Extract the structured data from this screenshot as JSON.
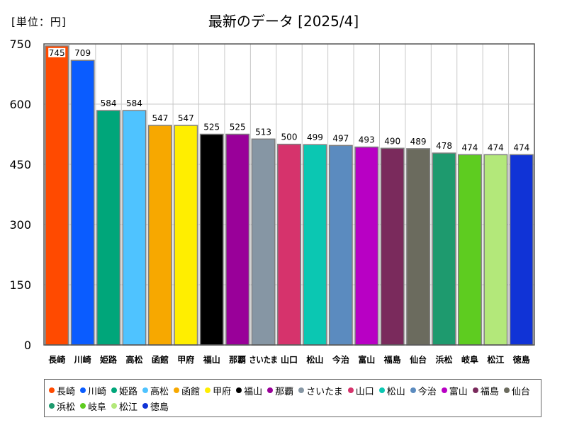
{
  "unit_label": "[単位：円]",
  "title": "最新のデータ [2025/4]",
  "chart_data": {
    "type": "bar",
    "title": "最新のデータ [2025/4]",
    "ylabel": "[単位：円]",
    "ylim": [
      0,
      750
    ],
    "yticks": [
      0,
      150,
      300,
      450,
      600,
      750
    ],
    "grid": true,
    "legend_position": "bottom",
    "categories": [
      "長崎",
      "川崎",
      "姫路",
      "高松",
      "函館",
      "甲府",
      "福山",
      "那覇",
      "さいたま",
      "山口",
      "松山",
      "今治",
      "富山",
      "福島",
      "仙台",
      "浜松",
      "岐阜",
      "松江",
      "徳島"
    ],
    "axis_labels": [
      "長崎",
      "川崎",
      "姫路",
      "高松",
      "函館",
      "甲府",
      "福山",
      "那覇",
      "さいたま",
      "山口",
      "松山",
      "今治",
      "富山",
      "福島",
      "仙台",
      "浜松",
      "岐阜",
      "松江",
      "徳島"
    ],
    "values": [
      745,
      709,
      584,
      584,
      547,
      547,
      525,
      525,
      513,
      500,
      499,
      497,
      493,
      490,
      489,
      478,
      474,
      474,
      474
    ],
    "colors": [
      "#ff4a00",
      "#0a5cff",
      "#00a67a",
      "#4fc3ff",
      "#f7a800",
      "#ffee00",
      "#000000",
      "#990099",
      "#8696a4",
      "#d6336c",
      "#0bc7b2",
      "#5b8bbf",
      "#b800c4",
      "#7a2a5c",
      "#6b6b5e",
      "#1e9a6e",
      "#5ecc20",
      "#b3e87a",
      "#1033d6"
    ]
  }
}
